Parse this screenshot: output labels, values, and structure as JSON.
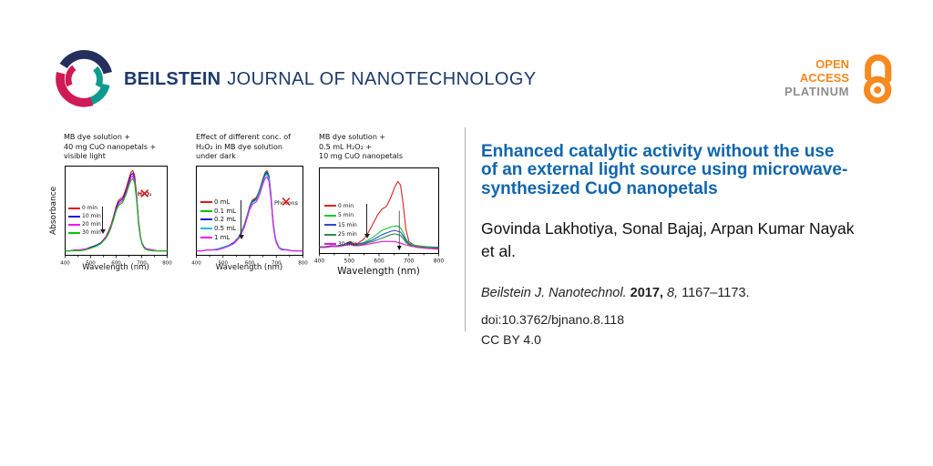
{
  "header": {
    "brand_bold": "BEILSTEIN",
    "brand_rest": "JOURNAL OF NANOTECHNOLOGY",
    "brand_color": "#1d3a6b",
    "open_access": {
      "line1": "OPEN",
      "line2": "ACCESS",
      "line3": "PLATINUM",
      "orange": "#f6891f",
      "gray": "#8d8d8d"
    },
    "logo_colors": {
      "navy": "#252f5e",
      "teal": "#0d9b8e",
      "crimson": "#cf1a55"
    }
  },
  "article": {
    "title_lines": [
      "Enhanced catalytic activity without the use",
      "of an external light source using microwave-",
      "synthesized CuO nanopetals"
    ],
    "title_color": "#1166ab",
    "authors_lines": [
      "Govinda Lakhotiya, Sonal Bajaj, Arpan Kumar Nayak",
      "et al."
    ],
    "citation": {
      "journal": "Beilstein J. Nanotechnol.",
      "year": "2017,",
      "volume": "8,",
      "pages": "1167–1173."
    },
    "doi": "doi:10.3762/bjnano.8.118",
    "license": "CC BY 4.0"
  },
  "chart_data": [
    {
      "type": "line",
      "title_lines": [
        "MB dye solution +",
        "40 mg CuO nanopetals +",
        "visible light"
      ],
      "xlabel": "Wavelength (nm)",
      "ylabel": "Absorbance",
      "xlim": [
        400,
        800
      ],
      "xticks": [
        400,
        500,
        600,
        700,
        800
      ],
      "grid": false,
      "legend_position": "center-left",
      "annotation": {
        "text": "H₂O₂",
        "cross_icon": "✕"
      },
      "x": [
        400,
        420,
        440,
        460,
        480,
        500,
        510,
        520,
        540,
        560,
        570,
        580,
        590,
        600,
        610,
        615,
        620,
        625,
        630,
        640,
        650,
        658,
        665,
        672,
        680,
        688,
        695,
        700,
        710,
        720,
        740,
        760,
        780,
        800
      ],
      "series": [
        {
          "label": "0 min",
          "color": "#e01616",
          "y": [
            0.05,
            0.05,
            0.06,
            0.06,
            0.07,
            0.09,
            0.1,
            0.11,
            0.14,
            0.21,
            0.27,
            0.34,
            0.44,
            0.55,
            0.62,
            0.63,
            0.64,
            0.65,
            0.68,
            0.76,
            0.86,
            0.93,
            0.95,
            0.9,
            0.68,
            0.38,
            0.22,
            0.15,
            0.09,
            0.07,
            0.06,
            0.05,
            0.05,
            0.05
          ]
        },
        {
          "label": "10 min",
          "color": "#1818d8",
          "y": [
            0.05,
            0.05,
            0.06,
            0.06,
            0.07,
            0.09,
            0.1,
            0.11,
            0.14,
            0.2,
            0.26,
            0.33,
            0.42,
            0.53,
            0.6,
            0.61,
            0.62,
            0.63,
            0.66,
            0.73,
            0.83,
            0.9,
            0.92,
            0.87,
            0.66,
            0.37,
            0.21,
            0.14,
            0.09,
            0.07,
            0.06,
            0.05,
            0.05,
            0.05
          ]
        },
        {
          "label": "20 min",
          "color": "#f214f2",
          "y": [
            0.05,
            0.05,
            0.06,
            0.06,
            0.07,
            0.08,
            0.09,
            0.1,
            0.13,
            0.2,
            0.25,
            0.32,
            0.41,
            0.51,
            0.58,
            0.59,
            0.6,
            0.61,
            0.64,
            0.71,
            0.8,
            0.87,
            0.89,
            0.84,
            0.64,
            0.36,
            0.21,
            0.14,
            0.08,
            0.07,
            0.06,
            0.05,
            0.05,
            0.05
          ]
        },
        {
          "label": "30 min",
          "color": "#0cc00c",
          "y": [
            0.05,
            0.05,
            0.05,
            0.05,
            0.06,
            0.08,
            0.09,
            0.1,
            0.13,
            0.19,
            0.24,
            0.31,
            0.4,
            0.5,
            0.56,
            0.57,
            0.58,
            0.59,
            0.62,
            0.69,
            0.78,
            0.84,
            0.86,
            0.81,
            0.62,
            0.34,
            0.2,
            0.14,
            0.08,
            0.06,
            0.05,
            0.05,
            0.05,
            0.05
          ]
        }
      ]
    },
    {
      "type": "line",
      "title_lines": [
        "Effect of different conc. of",
        "H₂O₂ in MB dye solution",
        "under dark"
      ],
      "xlabel": "Wavelength (nm)",
      "ylabel": "",
      "xlim": [
        400,
        800
      ],
      "xticks": [
        400,
        500,
        600,
        700,
        800
      ],
      "grid": false,
      "legend_position": "center-left",
      "annotation": {
        "text": "Photons",
        "cross_icon": "✕"
      },
      "x": [
        400,
        420,
        440,
        460,
        480,
        500,
        510,
        520,
        540,
        560,
        570,
        580,
        590,
        600,
        610,
        615,
        620,
        625,
        630,
        640,
        650,
        658,
        665,
        672,
        680,
        688,
        695,
        700,
        710,
        720,
        740,
        760,
        780,
        800
      ],
      "series": [
        {
          "label": "0 mL",
          "color": "#e01616",
          "y": [
            0.05,
            0.05,
            0.06,
            0.06,
            0.07,
            0.09,
            0.1,
            0.11,
            0.14,
            0.21,
            0.27,
            0.34,
            0.44,
            0.55,
            0.62,
            0.63,
            0.64,
            0.65,
            0.68,
            0.76,
            0.86,
            0.93,
            0.95,
            0.9,
            0.68,
            0.38,
            0.22,
            0.15,
            0.09,
            0.07,
            0.06,
            0.05,
            0.05,
            0.05
          ]
        },
        {
          "label": "0.1 mL",
          "color": "#0cc00c",
          "y": [
            0.05,
            0.05,
            0.06,
            0.06,
            0.07,
            0.09,
            0.1,
            0.11,
            0.14,
            0.21,
            0.27,
            0.34,
            0.44,
            0.54,
            0.61,
            0.62,
            0.63,
            0.64,
            0.67,
            0.75,
            0.85,
            0.92,
            0.94,
            0.89,
            0.67,
            0.38,
            0.22,
            0.15,
            0.09,
            0.07,
            0.06,
            0.05,
            0.05,
            0.05
          ]
        },
        {
          "label": "0.2 mL",
          "color": "#1818d8",
          "y": [
            0.05,
            0.05,
            0.06,
            0.06,
            0.07,
            0.09,
            0.1,
            0.11,
            0.14,
            0.2,
            0.26,
            0.33,
            0.43,
            0.54,
            0.6,
            0.61,
            0.62,
            0.63,
            0.66,
            0.74,
            0.84,
            0.91,
            0.93,
            0.88,
            0.66,
            0.37,
            0.21,
            0.15,
            0.09,
            0.07,
            0.06,
            0.05,
            0.05,
            0.05
          ]
        },
        {
          "label": "0.5 mL",
          "color": "#00c0d8",
          "y": [
            0.05,
            0.05,
            0.06,
            0.06,
            0.07,
            0.09,
            0.1,
            0.11,
            0.13,
            0.2,
            0.26,
            0.32,
            0.42,
            0.53,
            0.59,
            0.6,
            0.61,
            0.62,
            0.65,
            0.73,
            0.82,
            0.89,
            0.91,
            0.86,
            0.65,
            0.36,
            0.21,
            0.14,
            0.09,
            0.07,
            0.06,
            0.05,
            0.05,
            0.05
          ]
        },
        {
          "label": "1 mL",
          "color": "#f214f2",
          "y": [
            0.05,
            0.05,
            0.06,
            0.06,
            0.06,
            0.08,
            0.09,
            0.1,
            0.13,
            0.19,
            0.25,
            0.31,
            0.41,
            0.51,
            0.57,
            0.58,
            0.59,
            0.6,
            0.63,
            0.7,
            0.8,
            0.86,
            0.88,
            0.83,
            0.63,
            0.35,
            0.2,
            0.14,
            0.08,
            0.06,
            0.06,
            0.05,
            0.05,
            0.05
          ]
        }
      ]
    },
    {
      "type": "line",
      "title_lines": [
        "MB dye solution +",
        "0.5 mL H₂O₂ +",
        "10 mg CuO nanopetals"
      ],
      "xlabel": "Wavelength (nm)",
      "ylabel": "",
      "xlim": [
        400,
        800
      ],
      "xticks": [
        400,
        500,
        600,
        700,
        800
      ],
      "grid": false,
      "legend_position": "center-left",
      "inner_arrow": {
        "x": 668,
        "y_from": 0.5,
        "y_to": 0.09
      },
      "x": [
        400,
        420,
        440,
        460,
        480,
        495,
        505,
        515,
        530,
        550,
        565,
        580,
        595,
        610,
        625,
        640,
        652,
        663,
        672,
        680,
        690,
        700,
        715,
        730,
        760,
        800
      ],
      "series": [
        {
          "label": "0 min",
          "color": "#e02020",
          "y": [
            0.08,
            0.08,
            0.09,
            0.09,
            0.1,
            0.13,
            0.14,
            0.11,
            0.12,
            0.17,
            0.25,
            0.35,
            0.45,
            0.52,
            0.55,
            0.66,
            0.77,
            0.84,
            0.8,
            0.6,
            0.28,
            0.14,
            0.1,
            0.09,
            0.08,
            0.07
          ]
        },
        {
          "label": "5 min",
          "color": "#16c838",
          "y": [
            0.08,
            0.08,
            0.09,
            0.09,
            0.1,
            0.12,
            0.13,
            0.1,
            0.11,
            0.13,
            0.16,
            0.19,
            0.23,
            0.27,
            0.29,
            0.31,
            0.32,
            0.32,
            0.3,
            0.25,
            0.17,
            0.12,
            0.1,
            0.09,
            0.08,
            0.07
          ]
        },
        {
          "label": "15 min",
          "color": "#3048cc",
          "y": [
            0.08,
            0.08,
            0.09,
            0.09,
            0.1,
            0.12,
            0.13,
            0.1,
            0.11,
            0.12,
            0.14,
            0.16,
            0.19,
            0.22,
            0.24,
            0.26,
            0.27,
            0.26,
            0.25,
            0.21,
            0.15,
            0.11,
            0.09,
            0.08,
            0.07,
            0.07
          ]
        },
        {
          "label": "25 min",
          "color": "#2e8b57",
          "y": [
            0.08,
            0.08,
            0.08,
            0.09,
            0.09,
            0.11,
            0.12,
            0.1,
            0.1,
            0.11,
            0.13,
            0.14,
            0.16,
            0.18,
            0.2,
            0.22,
            0.23,
            0.22,
            0.21,
            0.18,
            0.13,
            0.1,
            0.09,
            0.08,
            0.07,
            0.06
          ]
        },
        {
          "label": "30 min",
          "color": "#ee14c8",
          "y": [
            0.07,
            0.07,
            0.08,
            0.08,
            0.09,
            0.1,
            0.11,
            0.09,
            0.09,
            0.1,
            0.11,
            0.12,
            0.13,
            0.14,
            0.14,
            0.14,
            0.14,
            0.13,
            0.12,
            0.11,
            0.1,
            0.09,
            0.08,
            0.07,
            0.06,
            0.05
          ]
        }
      ]
    }
  ]
}
